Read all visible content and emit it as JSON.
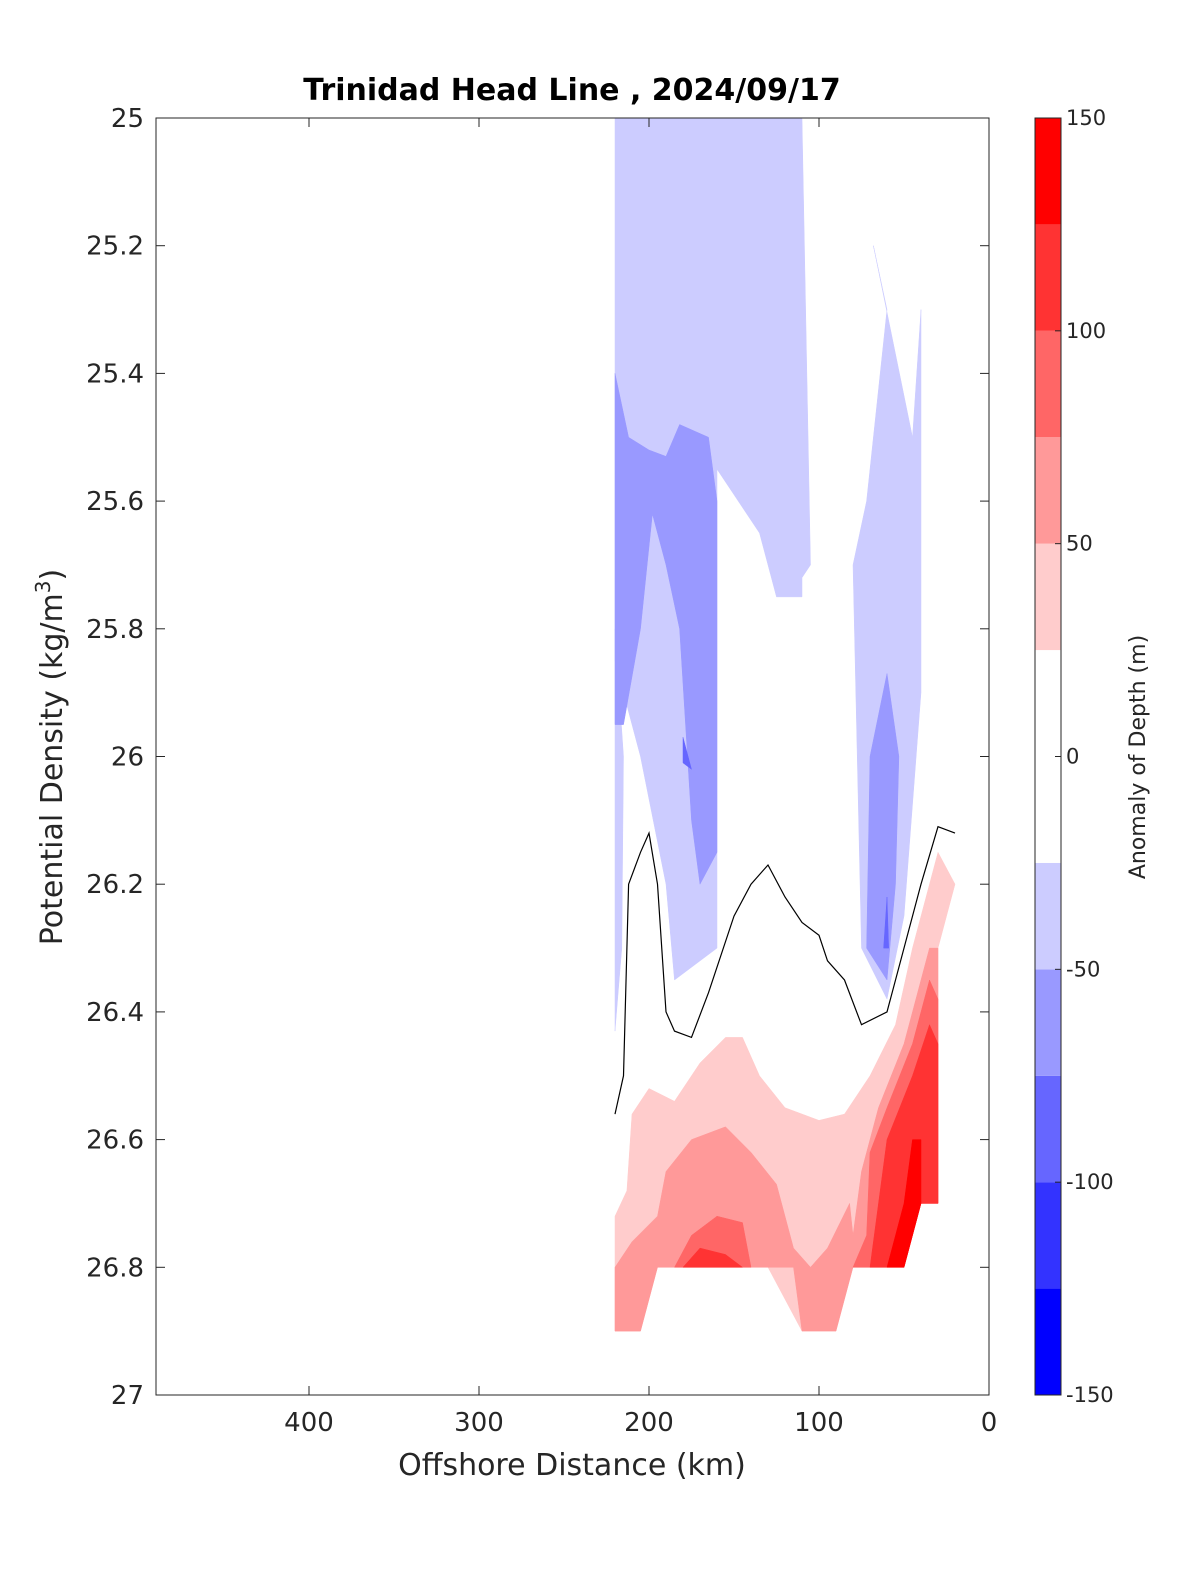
{
  "chart_data": {
    "type": "contourf",
    "title": "Trinidad Head Line , 2024/09/17",
    "xlabel": "Offshore Distance (km)",
    "ylabel_main": "Potential Density (kg/m",
    "ylabel_sup": "3",
    "ylabel_close": ")",
    "colorbar_label": "Anomaly of Depth (m)",
    "xlim": [
      490,
      0
    ],
    "x_reversed": true,
    "ylim": [
      27,
      25
    ],
    "y_reversed": true,
    "xticks": [
      400,
      300,
      200,
      100,
      0
    ],
    "yticks": [
      25,
      25.2,
      25.4,
      25.6,
      25.8,
      26,
      26.2,
      26.4,
      26.6,
      26.8,
      27
    ],
    "ytick_labels": [
      "25",
      "25.2",
      "25.4",
      "25.6",
      "25.8",
      "26",
      "26.2",
      "26.4",
      "26.6",
      "26.8",
      "27"
    ],
    "colorbar": {
      "range": [
        -150,
        150
      ],
      "ticks": [
        150,
        100,
        50,
        0,
        -50,
        -100,
        -150
      ],
      "levels": [
        {
          "from": -150,
          "to": -125,
          "color": "#0000ff"
        },
        {
          "from": -125,
          "to": -100,
          "color": "#3333ff"
        },
        {
          "from": -100,
          "to": -75,
          "color": "#6666ff"
        },
        {
          "from": -75,
          "to": -50,
          "color": "#9999ff"
        },
        {
          "from": -50,
          "to": -25,
          "color": "#ccccff"
        },
        {
          "from": -25,
          "to": 25,
          "color": "#ffffff"
        },
        {
          "from": 25,
          "to": 50,
          "color": "#ffcccc"
        },
        {
          "from": 50,
          "to": 75,
          "color": "#ff9999"
        },
        {
          "from": 75,
          "to": 100,
          "color": "#ff6666"
        },
        {
          "from": 100,
          "to": 125,
          "color": "#ff3333"
        },
        {
          "from": 125,
          "to": 150,
          "color": "#ff0000"
        }
      ]
    },
    "regions": [
      {
        "level": "-50 to -25",
        "color": "#ccccff",
        "points": [
          [
            220,
            25
          ],
          [
            110,
            25
          ],
          [
            105,
            25.7
          ],
          [
            110,
            25.72
          ],
          [
            110,
            25.75
          ],
          [
            125,
            25.75
          ],
          [
            135,
            25.65
          ],
          [
            160,
            25.55
          ],
          [
            160,
            26.3
          ],
          [
            185,
            26.35
          ],
          [
            190,
            26.2
          ],
          [
            205,
            26.0
          ],
          [
            220,
            25.85
          ]
        ]
      },
      {
        "level": "-50 to -25",
        "color": "#ccccff",
        "points": [
          [
            215,
            26.0
          ],
          [
            220,
            25.8
          ],
          [
            220,
            26.43
          ],
          [
            216,
            26.3
          ]
        ]
      },
      {
        "level": "-50 to -25",
        "color": "#ccccff",
        "points": [
          [
            68,
            25.2
          ],
          [
            60,
            25.3
          ],
          [
            72,
            25.6
          ],
          [
            80,
            25.7
          ],
          [
            75,
            26.3
          ],
          [
            60,
            26.38
          ],
          [
            50,
            26.25
          ],
          [
            40,
            25.9
          ],
          [
            40,
            25.3
          ],
          [
            45,
            25.5
          ]
        ]
      },
      {
        "level": "-75 to -50",
        "color": "#9999ff",
        "points": [
          [
            220,
            25.4
          ],
          [
            212,
            25.5
          ],
          [
            200,
            25.52
          ],
          [
            190,
            25.53
          ],
          [
            182,
            25.48
          ],
          [
            165,
            25.5
          ],
          [
            160,
            25.6
          ],
          [
            160,
            26.15
          ],
          [
            170,
            26.2
          ],
          [
            175,
            26.1
          ],
          [
            182,
            25.8
          ],
          [
            190,
            25.7
          ],
          [
            198,
            25.62
          ],
          [
            205,
            25.8
          ],
          [
            215,
            25.95
          ],
          [
            220,
            25.95
          ]
        ]
      },
      {
        "level": "-75 to -50",
        "color": "#9999ff",
        "points": [
          [
            60,
            25.87
          ],
          [
            70,
            26.0
          ],
          [
            72,
            26.3
          ],
          [
            60,
            26.35
          ],
          [
            55,
            26.2
          ],
          [
            53,
            26.0
          ]
        ]
      },
      {
        "level": "-100 to -75",
        "color": "#6666ff",
        "points": [
          [
            180,
            25.97
          ],
          [
            175,
            26.02
          ],
          [
            180,
            26.01
          ]
        ]
      },
      {
        "level": "-100 to -75",
        "color": "#6666ff",
        "points": [
          [
            60,
            26.22
          ],
          [
            62,
            26.3
          ],
          [
            59,
            26.3
          ]
        ]
      },
      {
        "level": "25 to 50",
        "color": "#ffcccc",
        "points": [
          [
            220,
            26.72
          ],
          [
            213,
            26.68
          ],
          [
            210,
            26.56
          ],
          [
            200,
            26.52
          ],
          [
            185,
            26.54
          ],
          [
            170,
            26.48
          ],
          [
            155,
            26.44
          ],
          [
            145,
            26.44
          ],
          [
            135,
            26.5
          ],
          [
            120,
            26.55
          ],
          [
            100,
            26.57
          ],
          [
            85,
            26.56
          ],
          [
            70,
            26.5
          ],
          [
            55,
            26.42
          ],
          [
            45,
            26.3
          ],
          [
            30,
            26.15
          ],
          [
            20,
            26.2
          ],
          [
            25,
            26.25
          ],
          [
            30,
            26.3
          ],
          [
            30,
            26.7
          ],
          [
            40,
            26.7
          ],
          [
            50,
            26.8
          ],
          [
            80,
            26.8
          ],
          [
            100,
            26.8
          ],
          [
            110,
            26.9
          ],
          [
            130,
            26.8
          ],
          [
            170,
            26.8
          ],
          [
            195,
            26.8
          ],
          [
            205,
            26.9
          ],
          [
            220,
            26.9
          ]
        ]
      },
      {
        "level": "50 to 75",
        "color": "#ff9999",
        "points": [
          [
            220,
            26.8
          ],
          [
            210,
            26.76
          ],
          [
            195,
            26.72
          ],
          [
            190,
            26.65
          ],
          [
            175,
            26.6
          ],
          [
            155,
            26.58
          ],
          [
            140,
            26.62
          ],
          [
            125,
            26.67
          ],
          [
            115,
            26.77
          ],
          [
            105,
            26.8
          ],
          [
            95,
            26.77
          ],
          [
            82,
            26.7
          ],
          [
            80,
            26.75
          ],
          [
            75,
            26.65
          ],
          [
            65,
            26.55
          ],
          [
            50,
            26.45
          ],
          [
            35,
            26.3
          ],
          [
            30,
            26.3
          ],
          [
            30,
            26.7
          ],
          [
            40,
            26.7
          ],
          [
            50,
            26.8
          ],
          [
            80,
            26.8
          ],
          [
            90,
            26.9
          ],
          [
            110,
            26.9
          ],
          [
            115,
            26.8
          ],
          [
            130,
            26.8
          ],
          [
            175,
            26.8
          ],
          [
            195,
            26.8
          ],
          [
            205,
            26.9
          ],
          [
            220,
            26.9
          ]
        ]
      },
      {
        "level": "75 to 100",
        "color": "#ff6666",
        "points": [
          [
            185,
            26.8
          ],
          [
            175,
            26.75
          ],
          [
            160,
            26.72
          ],
          [
            145,
            26.73
          ],
          [
            140,
            26.8
          ]
        ]
      },
      {
        "level": "75 to 100",
        "color": "#ff6666",
        "points": [
          [
            80,
            26.8
          ],
          [
            72,
            26.75
          ],
          [
            70,
            26.62
          ],
          [
            60,
            26.55
          ],
          [
            45,
            26.45
          ],
          [
            35,
            26.35
          ],
          [
            30,
            26.38
          ],
          [
            30,
            26.7
          ],
          [
            40,
            26.7
          ],
          [
            50,
            26.8
          ]
        ]
      },
      {
        "level": "100 to 125",
        "color": "#ff3333",
        "points": [
          [
            180,
            26.8
          ],
          [
            170,
            26.77
          ],
          [
            155,
            26.78
          ],
          [
            145,
            26.8
          ]
        ]
      },
      {
        "level": "100 to 125",
        "color": "#ff3333",
        "points": [
          [
            70,
            26.8
          ],
          [
            65,
            26.7
          ],
          [
            60,
            26.6
          ],
          [
            45,
            26.5
          ],
          [
            35,
            26.42
          ],
          [
            30,
            26.45
          ],
          [
            30,
            26.7
          ],
          [
            40,
            26.7
          ],
          [
            50,
            26.8
          ]
        ]
      },
      {
        "level": "125 to 150",
        "color": "#ff0000",
        "points": [
          [
            60,
            26.8
          ],
          [
            55,
            26.75
          ],
          [
            50,
            26.7
          ],
          [
            45,
            26.6
          ],
          [
            40,
            26.6
          ],
          [
            40,
            26.7
          ],
          [
            50,
            26.8
          ]
        ]
      }
    ],
    "zero_contour": [
      [
        220,
        26.56
      ],
      [
        215,
        26.5
      ],
      [
        212,
        26.2
      ],
      [
        205,
        26.15
      ],
      [
        200,
        26.12
      ],
      [
        195,
        26.2
      ],
      [
        190,
        26.4
      ],
      [
        185,
        26.43
      ],
      [
        175,
        26.44
      ],
      [
        165,
        26.37
      ],
      [
        150,
        26.25
      ],
      [
        140,
        26.2
      ],
      [
        130,
        26.17
      ],
      [
        120,
        26.22
      ],
      [
        110,
        26.26
      ],
      [
        100,
        26.28
      ],
      [
        95,
        26.32
      ],
      [
        85,
        26.35
      ],
      [
        75,
        26.42
      ],
      [
        60,
        26.4
      ],
      [
        50,
        26.3
      ],
      [
        40,
        26.2
      ],
      [
        30,
        26.11
      ],
      [
        20,
        26.12
      ]
    ]
  }
}
